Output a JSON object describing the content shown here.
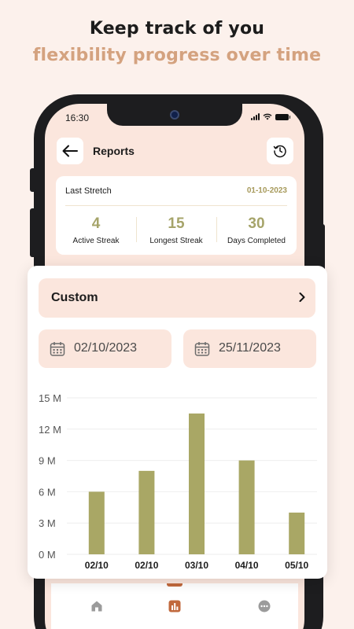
{
  "headline": {
    "line1": "Keep track of you",
    "line2": "flexibility progress over time"
  },
  "status_bar": {
    "time": "16:30"
  },
  "header": {
    "title": "Reports",
    "back_icon": "arrow-left-icon",
    "history_icon": "clock-history-icon"
  },
  "stats": {
    "title": "Last Stretch",
    "date": "01-10-2023",
    "items": [
      {
        "value": "4",
        "label": "Active Streak"
      },
      {
        "value": "15",
        "label": "Longest Streak"
      },
      {
        "value": "30",
        "label": "Days Completed"
      }
    ]
  },
  "filter": {
    "range_label": "Custom",
    "start_date": "02/10/2023",
    "end_date": "25/11/2023"
  },
  "colors": {
    "accent": "#a6a46a",
    "bar": "#a9a765",
    "peach": "#fbe6dd",
    "orange": "#c1693d",
    "headline_tan": "#d4a27f"
  },
  "nav": {
    "items": [
      "home-icon",
      "reports-icon",
      "more-icon"
    ],
    "active": 1
  },
  "chart_data": {
    "type": "bar",
    "categories": [
      "02/10",
      "02/10",
      "03/10",
      "04/10",
      "05/10"
    ],
    "values": [
      6,
      8,
      13.5,
      9,
      4
    ],
    "yticks": [
      "0 M",
      "3 M",
      "6 M",
      "9 M",
      "12 M",
      "15 M"
    ],
    "ylim": [
      0,
      15
    ],
    "xlabel": "",
    "ylabel": "",
    "grid": true
  }
}
